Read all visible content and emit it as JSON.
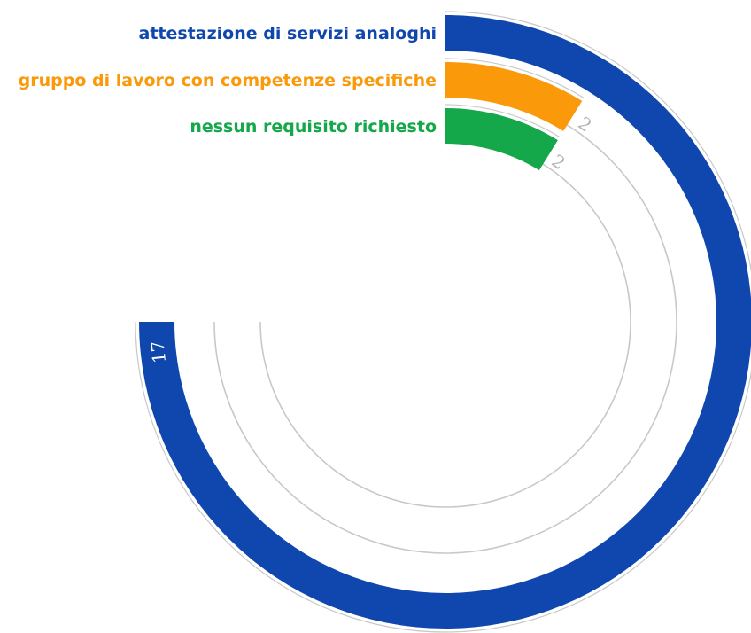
{
  "chart_data": {
    "type": "radial-bar",
    "title": "",
    "value_max": 17,
    "sweep_degrees": 270,
    "series": [
      {
        "name": "attestazione di servizi analoghi",
        "value": 17,
        "color": "#0f47af",
        "value_label_color": "#ffffff"
      },
      {
        "name": "gruppo di lavoro con competenze specifiche",
        "value": 2,
        "color": "#fa9a0b",
        "value_label_color": "#b4b4b4"
      },
      {
        "name": "nessun requisito richiesto",
        "value": 2,
        "color": "#14a84a",
        "value_label_color": "#b4b4b4"
      }
    ],
    "track_color": "#c8c8c8"
  }
}
